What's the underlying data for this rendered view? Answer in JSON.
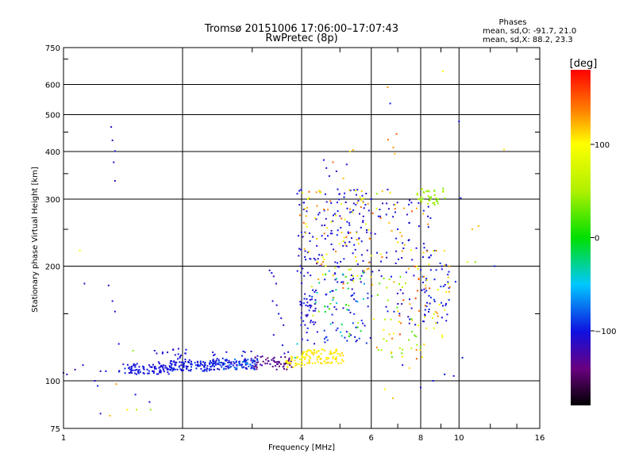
{
  "chart_data": {
    "type": "scatter",
    "title": "Tromsø 20151006 17:06:00–17:07:43",
    "subtitle": "RwPretec (8p)",
    "xlabel": "Frequency [MHz]",
    "ylabel": "Stationary phase Virtual Height [km]",
    "x_scale": "log",
    "y_scale": "log",
    "xlim": [
      1,
      16
    ],
    "ylim": [
      75,
      750
    ],
    "x_ticks": [
      1,
      2,
      4,
      6,
      8,
      10,
      16
    ],
    "x_tick_labels": [
      "1",
      "2",
      "4",
      "6",
      "8",
      "10",
      "16"
    ],
    "y_ticks": [
      75,
      100,
      200,
      300,
      400,
      500,
      600,
      750
    ],
    "y_tick_labels": [
      "75",
      "100",
      "200",
      "300",
      "400",
      "500",
      "600",
      "750"
    ],
    "x_grid": [
      2,
      4,
      6,
      8,
      10
    ],
    "y_grid": [
      100,
      200,
      300,
      400,
      500,
      600
    ],
    "stats": {
      "title": "Phases",
      "line1": "mean, sd,O: -91.7, 21.0",
      "line2": "mean, sd,X:  88.2, 23.3"
    },
    "colorbar": {
      "label": "[deg]",
      "range": [
        -180,
        180
      ],
      "ticks": [
        100,
        0,
        -100
      ],
      "tick_labels": [
        "100",
        "0",
        "−100"
      ]
    },
    "points": [
      [
        1.0,
        105,
        -110
      ],
      [
        1.02,
        104,
        -105
      ],
      [
        1.07,
        107,
        -120
      ],
      [
        1.1,
        220,
        100
      ],
      [
        1.13,
        180,
        -110
      ],
      [
        1.12,
        110,
        -100
      ],
      [
        1.2,
        100,
        -105
      ],
      [
        1.22,
        97,
        -95
      ],
      [
        1.24,
        82,
        -110
      ],
      [
        1.24,
        106,
        -115
      ],
      [
        1.28,
        106,
        -100
      ],
      [
        1.32,
        464,
        -110
      ],
      [
        1.33,
        428,
        -115
      ],
      [
        1.34,
        375,
        -105
      ],
      [
        1.35,
        335,
        -110
      ],
      [
        1.35,
        401,
        -100
      ],
      [
        1.3,
        178,
        -115
      ],
      [
        1.33,
        162,
        -110
      ],
      [
        1.35,
        152,
        -105
      ],
      [
        1.38,
        125,
        -100
      ],
      [
        1.31,
        81,
        120
      ],
      [
        1.36,
        98,
        130
      ],
      [
        1.45,
        84,
        100
      ],
      [
        1.5,
        120,
        40
      ],
      [
        1.52,
        92,
        -100
      ],
      [
        1.53,
        84,
        60
      ],
      [
        1.65,
        88,
        -110
      ],
      [
        1.66,
        84,
        40
      ],
      [
        1.7,
        120,
        -100
      ],
      [
        1.72,
        118,
        -110
      ],
      [
        1.74,
        112,
        -110
      ],
      [
        1.78,
        118,
        -105
      ],
      [
        3.32,
        195,
        -110
      ],
      [
        3.36,
        192,
        -100
      ],
      [
        3.4,
        188,
        -120
      ],
      [
        3.45,
        180,
        -115
      ],
      [
        3.38,
        162,
        -110
      ],
      [
        3.46,
        158,
        -105
      ],
      [
        3.5,
        150,
        -100
      ],
      [
        3.55,
        146,
        -110
      ],
      [
        3.6,
        140,
        -120
      ],
      [
        3.4,
        132,
        -110
      ],
      [
        3.58,
        124,
        -100
      ],
      [
        3.62,
        118,
        -110
      ],
      [
        3.7,
        119,
        -100
      ],
      [
        3.85,
        115,
        -40
      ],
      [
        3.9,
        125,
        -40
      ],
      [
        6.6,
        590,
        130
      ],
      [
        6.7,
        535,
        -100
      ],
      [
        6.62,
        430,
        140
      ],
      [
        6.95,
        445,
        150
      ],
      [
        6.82,
        410,
        130
      ],
      [
        6.88,
        395,
        120
      ],
      [
        9.1,
        650,
        100
      ],
      [
        10.0,
        480,
        -100
      ],
      [
        10.1,
        302,
        -100
      ],
      [
        12.3,
        200,
        -100
      ],
      [
        13.0,
        405,
        110
      ],
      [
        11.2,
        255,
        120
      ],
      [
        10.8,
        250,
        120
      ],
      [
        11.0,
        205,
        40
      ],
      [
        10.5,
        205,
        80
      ],
      [
        9.8,
        182,
        -100
      ],
      [
        9.7,
        103,
        -100
      ],
      [
        10.2,
        115,
        -100
      ],
      [
        5.3,
        400,
        110
      ],
      [
        5.4,
        404,
        120
      ],
      [
        4.55,
        380,
        -100
      ],
      [
        4.62,
        362,
        -110
      ],
      [
        4.7,
        345,
        -100
      ],
      [
        4.8,
        375,
        150
      ],
      [
        4.9,
        355,
        -110
      ],
      [
        5.1,
        340,
        120
      ],
      [
        5.2,
        370,
        -105
      ],
      [
        5.8,
        290,
        -100
      ],
      [
        5.92,
        280,
        -110
      ],
      [
        6.0,
        300,
        -100
      ],
      [
        6.2,
        310,
        40
      ],
      [
        6.4,
        315,
        120
      ],
      [
        6.6,
        318,
        -110
      ],
      [
        6.7,
        312,
        110
      ],
      [
        6.9,
        290,
        100
      ],
      [
        7.0,
        250,
        -100
      ],
      [
        7.1,
        245,
        120
      ],
      [
        7.2,
        230,
        -105
      ],
      [
        6.5,
        95,
        100
      ],
      [
        6.8,
        90,
        120
      ],
      [
        7.2,
        110,
        -100
      ],
      [
        7.5,
        108,
        110
      ],
      [
        8.0,
        96,
        -110
      ],
      [
        8.6,
        100,
        -100
      ],
      [
        9.2,
        104,
        -100
      ],
      [
        3.9,
        310,
        -100
      ],
      [
        3.95,
        290,
        -110
      ],
      [
        4.05,
        260,
        150
      ]
    ],
    "clusters": [
      {
        "x": [
          1.38,
          1.86
        ],
        "y": [
          104,
          111
        ],
        "phase": [
          -110,
          -95
        ],
        "n": 90
      },
      {
        "x": [
          1.86,
          2.4
        ],
        "y": [
          106,
          113
        ],
        "phase": [
          -110,
          -85
        ],
        "n": 100
      },
      {
        "x": [
          2.4,
          3.1
        ],
        "y": [
          107,
          114
        ],
        "phase": [
          -115,
          -70
        ],
        "n": 100
      },
      {
        "x": [
          3.0,
          3.8
        ],
        "y": [
          107,
          116
        ],
        "phase": [
          -150,
          -120
        ],
        "n": 60
      },
      {
        "x": [
          3.65,
          4.1
        ],
        "y": [
          108,
          116
        ],
        "phase": [
          100,
          110
        ],
        "n": 40
      },
      {
        "x": [
          4.0,
          5.1
        ],
        "y": [
          111,
          121
        ],
        "phase": [
          100,
          115
        ],
        "n": 90
      },
      {
        "x": [
          1.78,
          2.1
        ],
        "y": [
          109,
          122
        ],
        "phase": [
          -110,
          -100
        ],
        "n": 25
      },
      {
        "x": [
          2.3,
          3.1
        ],
        "y": [
          110,
          120
        ],
        "phase": [
          -110,
          -95
        ],
        "n": 30
      },
      {
        "x": [
          3.95,
          4.35
        ],
        "y": [
          140,
          165
        ],
        "phase": [
          -115,
          -95
        ],
        "n": 35
      },
      {
        "x": [
          3.9,
          6.0
        ],
        "y": [
          180,
          320
        ],
        "phase": [
          -115,
          -95
        ],
        "n": 140
      },
      {
        "x": [
          4.0,
          6.0
        ],
        "y": [
          125,
          175
        ],
        "phase": [
          -115,
          -85
        ],
        "n": 60
      },
      {
        "x": [
          3.95,
          6.0
        ],
        "y": [
          175,
          320
        ],
        "phase": [
          80,
          150
        ],
        "n": 80
      },
      {
        "x": [
          4.2,
          5.8
        ],
        "y": [
          130,
          200
        ],
        "phase": [
          -70,
          70
        ],
        "n": 45
      },
      {
        "x": [
          6.0,
          8.5
        ],
        "y": [
          140,
          300
        ],
        "phase": [
          -115,
          -95
        ],
        "n": 70
      },
      {
        "x": [
          6.0,
          8.5
        ],
        "y": [
          110,
          300
        ],
        "phase": [
          90,
          160
        ],
        "n": 55
      },
      {
        "x": [
          6.2,
          8.0
        ],
        "y": [
          110,
          190
        ],
        "phase": [
          20,
          60
        ],
        "n": 30
      },
      {
        "x": [
          7.8,
          9.3
        ],
        "y": [
          290,
          320
        ],
        "phase": [
          30,
          60
        ],
        "n": 40
      },
      {
        "x": [
          8.0,
          9.5
        ],
        "y": [
          140,
          230
        ],
        "phase": [
          -110,
          -90
        ],
        "n": 45
      },
      {
        "x": [
          8.0,
          9.5
        ],
        "y": [
          130,
          220
        ],
        "phase": [
          80,
          140
        ],
        "n": 30
      }
    ]
  }
}
